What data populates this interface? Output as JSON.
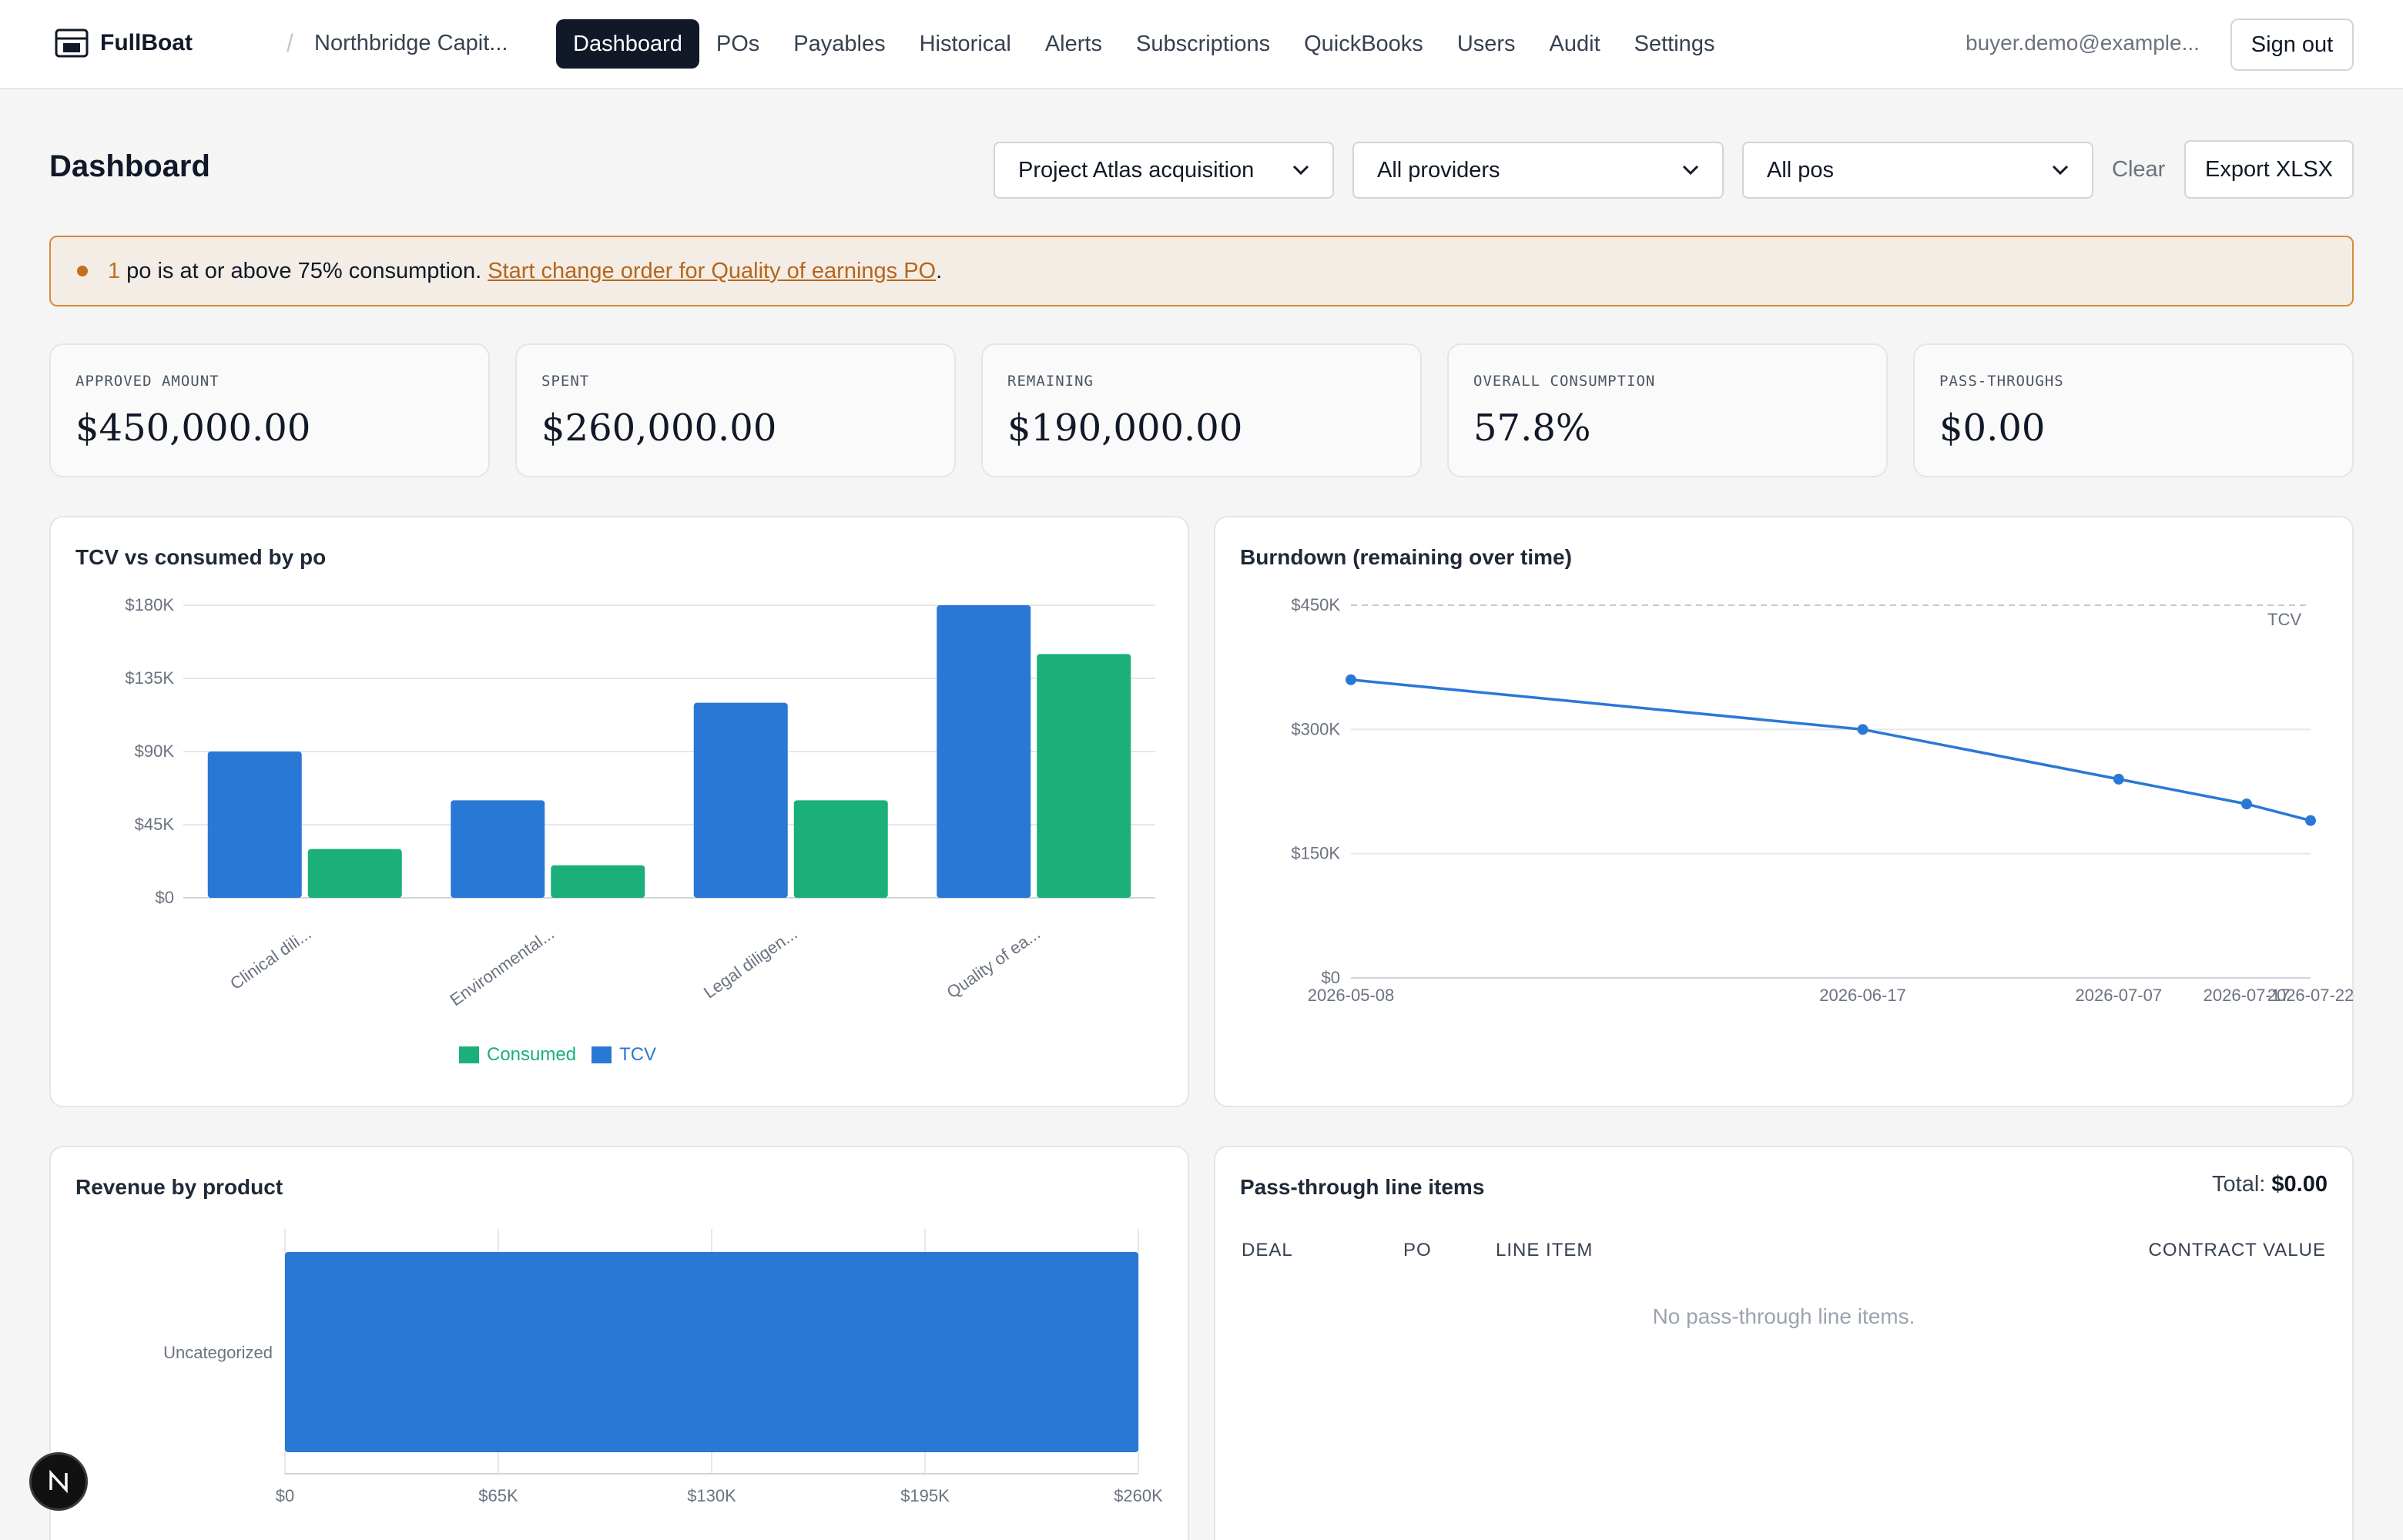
{
  "nav": {
    "brand": "FullBoat",
    "org": "Northbridge Capit...",
    "links": [
      "Dashboard",
      "POs",
      "Payables",
      "Historical",
      "Alerts",
      "Subscriptions",
      "QuickBooks",
      "Users",
      "Audit",
      "Settings"
    ],
    "active": "Dashboard",
    "user_email": "buyer.demo@example...",
    "signout_label": "Sign out"
  },
  "header": {
    "title": "Dashboard",
    "filters": {
      "deal": "Project Atlas acquisition",
      "provider": "All providers",
      "po": "All pos"
    },
    "clear_label": "Clear",
    "export_label": "Export XLSX"
  },
  "alert": {
    "count": "1",
    "text": "po is at or above 75% consumption.",
    "link": "Start change order for Quality of earnings PO",
    "suffix": "."
  },
  "stats": [
    {
      "label": "APPROVED AMOUNT",
      "value": "$450,000.00"
    },
    {
      "label": "SPENT",
      "value": "$260,000.00"
    },
    {
      "label": "REMAINING",
      "value": "$190,000.00"
    },
    {
      "label": "OVERALL CONSUMPTION",
      "value": "57.8%"
    },
    {
      "label": "PASS-THROUGHS",
      "value": "$0.00"
    }
  ],
  "panels": {
    "tcv": {
      "title": "TCV vs consumed by po"
    },
    "burndown": {
      "title": "Burndown (remaining over time)"
    },
    "revenue": {
      "title": "Revenue by product"
    },
    "passthrough": {
      "title": "Pass-through line items",
      "total_label": "Total:",
      "total_value": "$0.00",
      "columns": [
        "DEAL",
        "PO",
        "LINE ITEM",
        "CONTRACT VALUE"
      ],
      "empty_text": "No pass-through line items."
    }
  },
  "colors": {
    "tcv": "#2a78d6",
    "consumed": "#1bb07a",
    "accent": "#111827",
    "alert": "#c2701f"
  },
  "icons": {
    "brand": "boat-logo-icon",
    "chevron": "chevron-down-icon",
    "floating": "next-logo-icon"
  },
  "chart_data": [
    {
      "type": "bar",
      "title": "TCV vs consumed by po",
      "categories": [
        "Clinical dili...",
        "Environmental...",
        "Legal diligen...",
        "Quality of ea..."
      ],
      "series": [
        {
          "name": "TCV",
          "values": [
            90000,
            60000,
            120000,
            180000
          ]
        },
        {
          "name": "Consumed",
          "values": [
            30000,
            20000,
            60000,
            150000
          ]
        }
      ],
      "yticks": [
        "$0",
        "$45K",
        "$90K",
        "$135K",
        "$180K"
      ],
      "ylim": [
        0,
        180000
      ],
      "legend": [
        "Consumed",
        "TCV"
      ],
      "legend_position": "bottom",
      "grid": true
    },
    {
      "type": "line",
      "title": "Burndown (remaining over time)",
      "x": [
        "2026-05-08",
        "2026-06-17",
        "2026-07-07",
        "2026-07-17",
        "2026-07-22"
      ],
      "series": [
        {
          "values": [
            360000,
            300000,
            240000,
            210000,
            190000
          ]
        }
      ],
      "reference_line": {
        "label": "TCV",
        "value": 450000
      },
      "yticks": [
        "$0",
        "$150K",
        "$300K",
        "$450K"
      ],
      "ylim": [
        0,
        450000
      ],
      "grid": true
    },
    {
      "type": "bar",
      "orientation": "horizontal",
      "title": "Revenue by product",
      "categories": [
        "Uncategorized"
      ],
      "values": [
        260000
      ],
      "xticks": [
        "$0",
        "$65K",
        "$130K",
        "$195K",
        "$260K"
      ],
      "xlim": [
        0,
        260000
      ],
      "grid": true
    }
  ]
}
